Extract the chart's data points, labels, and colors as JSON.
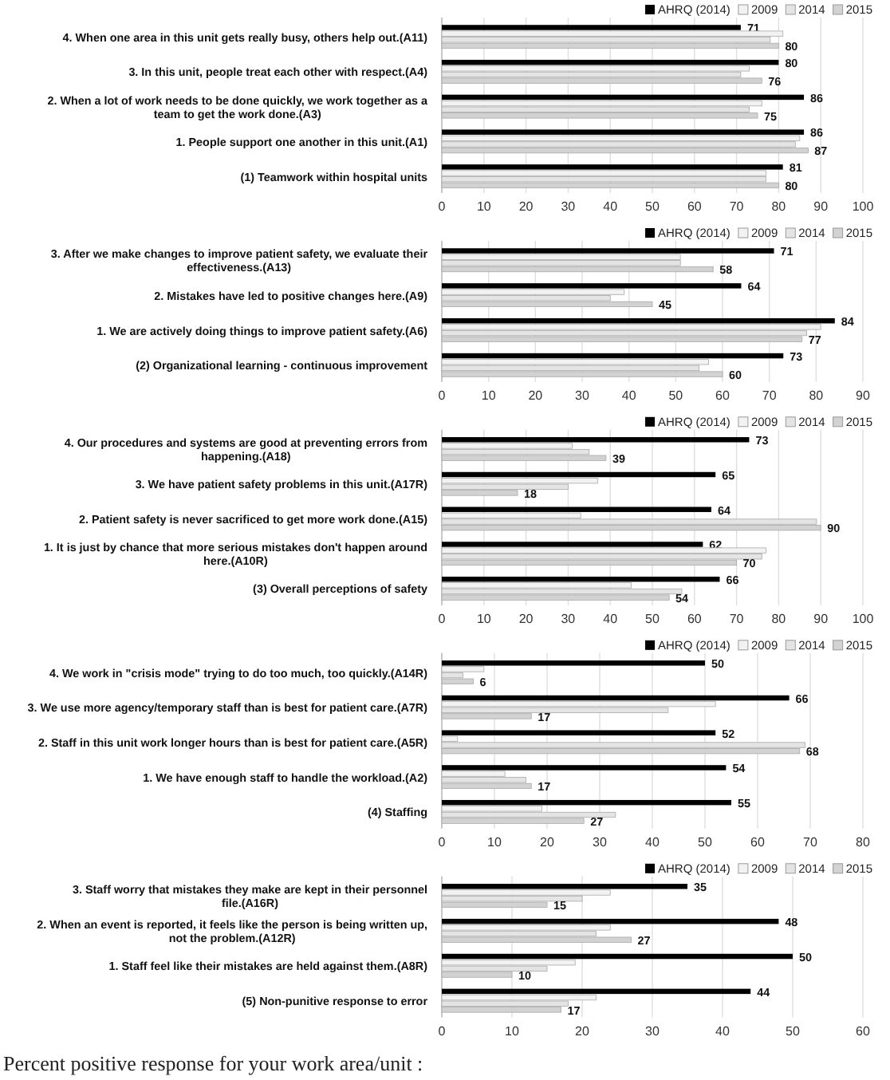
{
  "chart_data": [
    {
      "type": "bar",
      "orientation": "horizontal",
      "grid": "x",
      "legend": "top right",
      "categories": [
        "4. When one area in this unit gets really busy, others help out.(A11)",
        "3. In this unit, people treat each other with respect.(A4)",
        "2. When a lot of work needs to be done quickly, we work together as a team to get the work done.(A3)",
        "1. People support one another in this unit.(A1)",
        "(1) Teamwork within hospital units"
      ],
      "xlim": [
        0,
        100
      ],
      "xticks": [
        0,
        10,
        20,
        30,
        40,
        50,
        60,
        70,
        80,
        90,
        100
      ],
      "series": [
        {
          "name": "AHRQ (2014)",
          "color": "#000000",
          "values": [
            71,
            80,
            86,
            86,
            81
          ],
          "value_labels": [
            "71",
            "80",
            "86",
            "86",
            "81"
          ]
        },
        {
          "name": "2009",
          "color": "#f2f2f2",
          "values": [
            81,
            73,
            76,
            85,
            77
          ]
        },
        {
          "name": "2014",
          "color": "#e4e4e4",
          "values": [
            78,
            71,
            73,
            84,
            77
          ]
        },
        {
          "name": "2015",
          "color": "#d2d2d2",
          "values": [
            80,
            76,
            75,
            87,
            80
          ],
          "value_labels": [
            "80",
            "76",
            "75",
            "87",
            "80"
          ]
        }
      ]
    },
    {
      "type": "bar",
      "orientation": "horizontal",
      "grid": "x",
      "legend": "top right",
      "categories": [
        "3. After we make changes to improve patient safety, we evaluate their effectiveness.(A13)",
        "2. Mistakes have led to positive changes here.(A9)",
        "1. We are actively doing things to improve patient safety.(A6)",
        "(2) Organizational learning - continuous improvement"
      ],
      "xlim": [
        0,
        90
      ],
      "xticks": [
        0,
        10,
        20,
        30,
        40,
        50,
        60,
        70,
        80,
        90
      ],
      "series": [
        {
          "name": "AHRQ (2014)",
          "color": "#000000",
          "values": [
            71,
            64,
            84,
            73
          ],
          "value_labels": [
            "71",
            "64",
            "84",
            "73"
          ]
        },
        {
          "name": "2009",
          "color": "#f2f2f2",
          "values": [
            51,
            39,
            81,
            57
          ]
        },
        {
          "name": "2014",
          "color": "#e4e4e4",
          "values": [
            51,
            36,
            78,
            55
          ]
        },
        {
          "name": "2015",
          "color": "#d2d2d2",
          "values": [
            58,
            45,
            77,
            60
          ],
          "value_labels": [
            "58",
            "45",
            "77",
            "60"
          ]
        }
      ]
    },
    {
      "type": "bar",
      "orientation": "horizontal",
      "grid": "x",
      "legend": "top right",
      "categories": [
        "4. Our procedures and systems are good at preventing errors from happening.(A18)",
        "3. We have patient safety problems in this unit.(A17R)",
        "2. Patient safety is never sacrificed to get more work done.(A15)",
        "1. It is just by chance that more serious mistakes don't happen around here.(A10R)",
        "(3) Overall perceptions of safety"
      ],
      "xlim": [
        0,
        100
      ],
      "xticks": [
        0,
        10,
        20,
        30,
        40,
        50,
        60,
        70,
        80,
        90,
        100
      ],
      "series": [
        {
          "name": "AHRQ (2014)",
          "color": "#000000",
          "values": [
            73,
            65,
            64,
            62,
            66
          ],
          "value_labels": [
            "73",
            "65",
            "64",
            "62",
            "66"
          ]
        },
        {
          "name": "2009",
          "color": "#f2f2f2",
          "values": [
            31,
            37,
            33,
            77,
            45
          ]
        },
        {
          "name": "2014",
          "color": "#e4e4e4",
          "values": [
            35,
            30,
            89,
            76,
            57
          ]
        },
        {
          "name": "2015",
          "color": "#d2d2d2",
          "values": [
            39,
            18,
            90,
            70,
            54
          ],
          "value_labels": [
            "39",
            "18",
            "90",
            "70",
            "54"
          ]
        }
      ]
    },
    {
      "type": "bar",
      "orientation": "horizontal",
      "grid": "x",
      "legend": "top right",
      "categories": [
        "4. We work in \"crisis mode\" trying to do too much, too quickly.(A14R)",
        "3. We use more agency/temporary staff than is best for patient care.(A7R)",
        "2. Staff in this unit work longer hours than is best for patient care.(A5R)",
        "1. We have enough staff to handle the workload.(A2)",
        "(4) Staffing"
      ],
      "xlim": [
        0,
        80
      ],
      "xticks": [
        0,
        10,
        20,
        30,
        40,
        50,
        60,
        70,
        80
      ],
      "series": [
        {
          "name": "AHRQ (2014)",
          "color": "#000000",
          "values": [
            50,
            66,
            52,
            54,
            55
          ],
          "value_labels": [
            "50",
            "66",
            "52",
            "54",
            "55"
          ]
        },
        {
          "name": "2009",
          "color": "#f2f2f2",
          "values": [
            8,
            52,
            3,
            12,
            19
          ]
        },
        {
          "name": "2014",
          "color": "#e4e4e4",
          "values": [
            4,
            43,
            69,
            16,
            33
          ]
        },
        {
          "name": "2015",
          "color": "#d2d2d2",
          "values": [
            6,
            17,
            68,
            17,
            27
          ],
          "value_labels": [
            "6",
            "17",
            "68",
            "17",
            "27"
          ]
        }
      ]
    },
    {
      "type": "bar",
      "orientation": "horizontal",
      "grid": "x",
      "legend": "top right",
      "categories": [
        "3. Staff worry that mistakes they make are kept in their personnel file.(A16R)",
        "2. When an event is reported, it feels like the person is being written up, not the problem.(A12R)",
        "1. Staff feel like their mistakes are held against them.(A8R)",
        "(5) Non-punitive response to error"
      ],
      "xlim": [
        0,
        60
      ],
      "xticks": [
        0,
        10,
        20,
        30,
        40,
        50,
        60
      ],
      "annotations": [
        "Percent positive response for your work area/unit :"
      ],
      "series": [
        {
          "name": "AHRQ (2014)",
          "color": "#000000",
          "values": [
            35,
            48,
            50,
            44
          ],
          "value_labels": [
            "35",
            "48",
            "50",
            "44"
          ]
        },
        {
          "name": "2009",
          "color": "#f2f2f2",
          "values": [
            24,
            24,
            19,
            22
          ]
        },
        {
          "name": "2014",
          "color": "#e4e4e4",
          "values": [
            20,
            22,
            15,
            18
          ]
        },
        {
          "name": "2015",
          "color": "#d2d2d2",
          "values": [
            15,
            27,
            10,
            17
          ],
          "value_labels": [
            "15",
            "27",
            "10",
            "17"
          ]
        }
      ]
    }
  ]
}
